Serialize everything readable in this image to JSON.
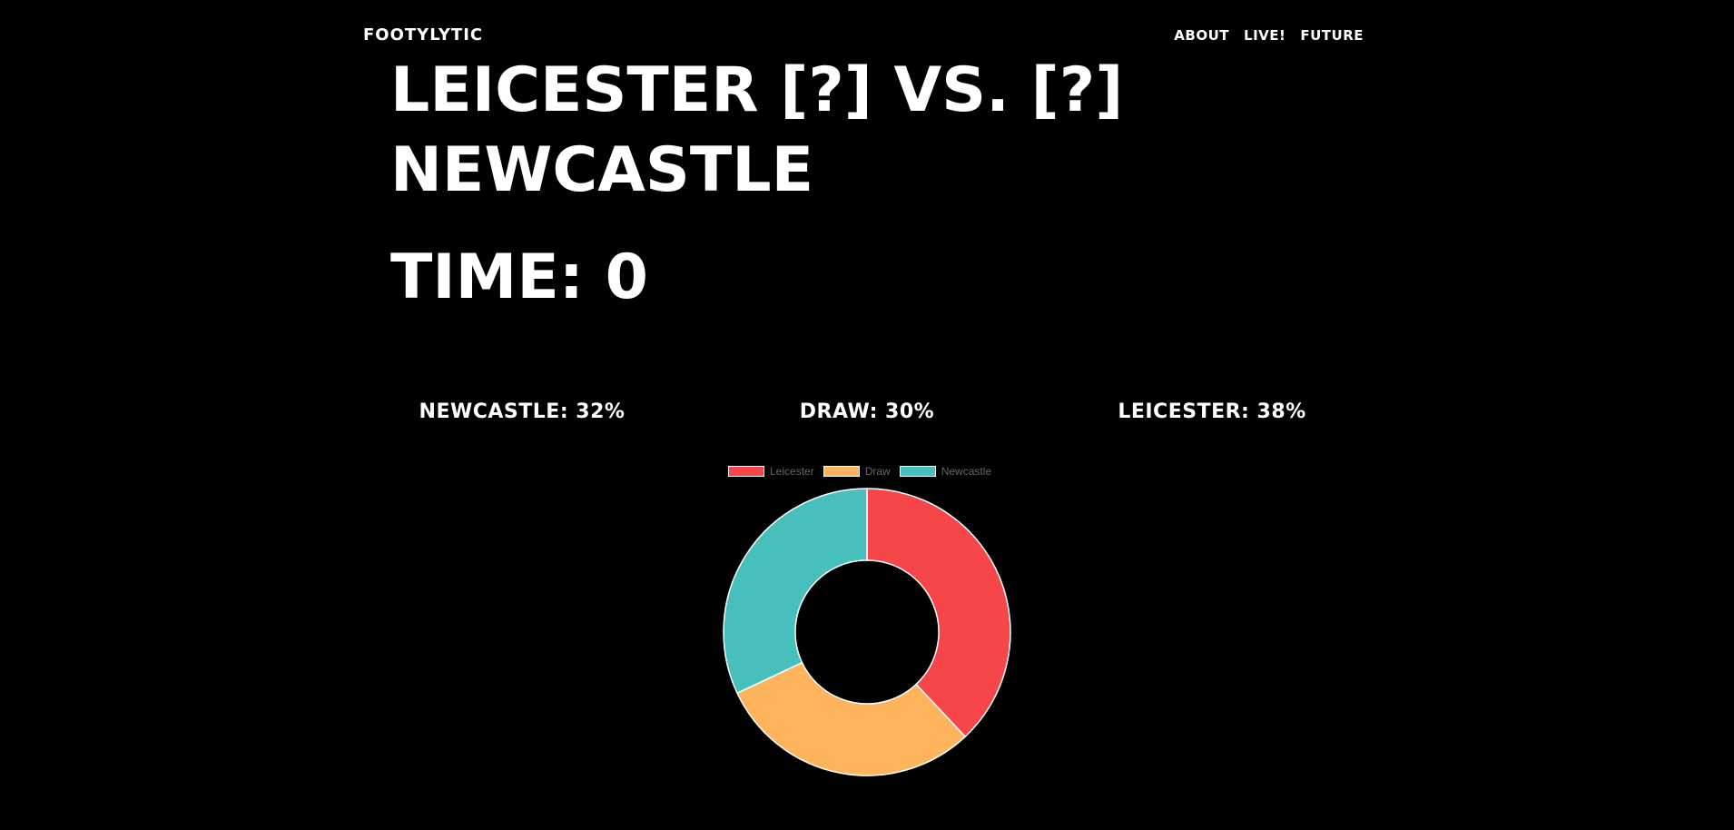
{
  "header": {
    "brand": "FOOTYLYTIC",
    "nav": [
      "ABOUT",
      "LIVE!",
      "FUTURE"
    ]
  },
  "match": {
    "title": "LEICESTER [?] VS. [?] NEWCASTLE",
    "time": "TIME: 0"
  },
  "probabilities": {
    "newcastle": "NEWCASTLE: 32%",
    "draw": "DRAW: 30%",
    "leicester": "LEICESTER: 38%"
  },
  "colors": {
    "background": "#000000",
    "leicester": "#F7464A",
    "draw": "#FDB45C",
    "newcastle": "#46BFBD",
    "legend_text": "#666666"
  },
  "chart_data": {
    "type": "pie",
    "variant": "doughnut",
    "legend": "top",
    "categories": [
      "Leicester",
      "Draw",
      "Newcastle"
    ],
    "values": [
      38,
      30,
      32
    ],
    "colors": [
      "#F7464A",
      "#FDB45C",
      "#46BFBD"
    ]
  }
}
